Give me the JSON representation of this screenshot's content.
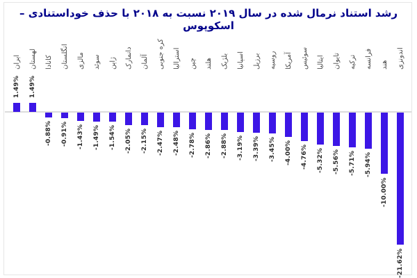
{
  "title": "رشد استناد نرمال شده در سال ۲۰۱۹ نسبت به ۲۰۱۸ با حذف خوداستنادی – اسکوپوس",
  "colors": {
    "bar": "#3c16e6",
    "title": "#00008b",
    "axis_line": "#dcdcdc",
    "value_label": "#2e2e2e",
    "category_label": "#4d4d4d",
    "frame": "#e6e6e6",
    "background": "#ffffff"
  },
  "chart_data": {
    "type": "bar",
    "orientation": "vertical",
    "title": "رشد استناد نرمال شده در سال ۲۰۱۹ نسبت به ۲۰۱۸ با حذف خوداستنادی – اسکوپوس",
    "categories": [
      "ایران",
      "لهستان",
      "کانادا",
      "انگلستان",
      "مالزی",
      "سوئد",
      "ژاپن",
      "دانمارک",
      "آلمان",
      "کره جنوبی",
      "استرالیا",
      "چین",
      "هلند",
      "بلژیک",
      "اسپانیا",
      "برزیل",
      "روسیه",
      "آمریکا",
      "سوئیس",
      "ایتالیا",
      "تایوان",
      "ترکیه",
      "فرانسه",
      "هند",
      "اندونزی"
    ],
    "values": [
      1.49,
      1.49,
      -0.88,
      -0.91,
      -1.43,
      -1.49,
      -1.54,
      -2.05,
      -2.15,
      -2.47,
      -2.48,
      -2.78,
      -2.86,
      -2.88,
      -3.19,
      -3.39,
      -3.45,
      -4.0,
      -4.76,
      -5.32,
      -5.56,
      -5.71,
      -5.94,
      -10.0,
      -21.62
    ],
    "value_labels": [
      "1.49%",
      "1.49%",
      "-0.88%",
      "-0.91%",
      "-1.43%",
      "-1.49%",
      "-1.54%",
      "-2.05%",
      "-2.15%",
      "-2.47%",
      "-2.48%",
      "-2.78%",
      "-2.86%",
      "-2.88%",
      "-3.19%",
      "-3.39%",
      "-3.45%",
      "-4.00%",
      "-4.76%",
      "-5.32%",
      "-5.56%",
      "-5.71%",
      "-5.94%",
      "-10.00%",
      "-21.62%"
    ],
    "ylim": [
      -22,
      2
    ],
    "grid": false,
    "legend": "none",
    "label_rotation": 90,
    "unit": "%"
  }
}
